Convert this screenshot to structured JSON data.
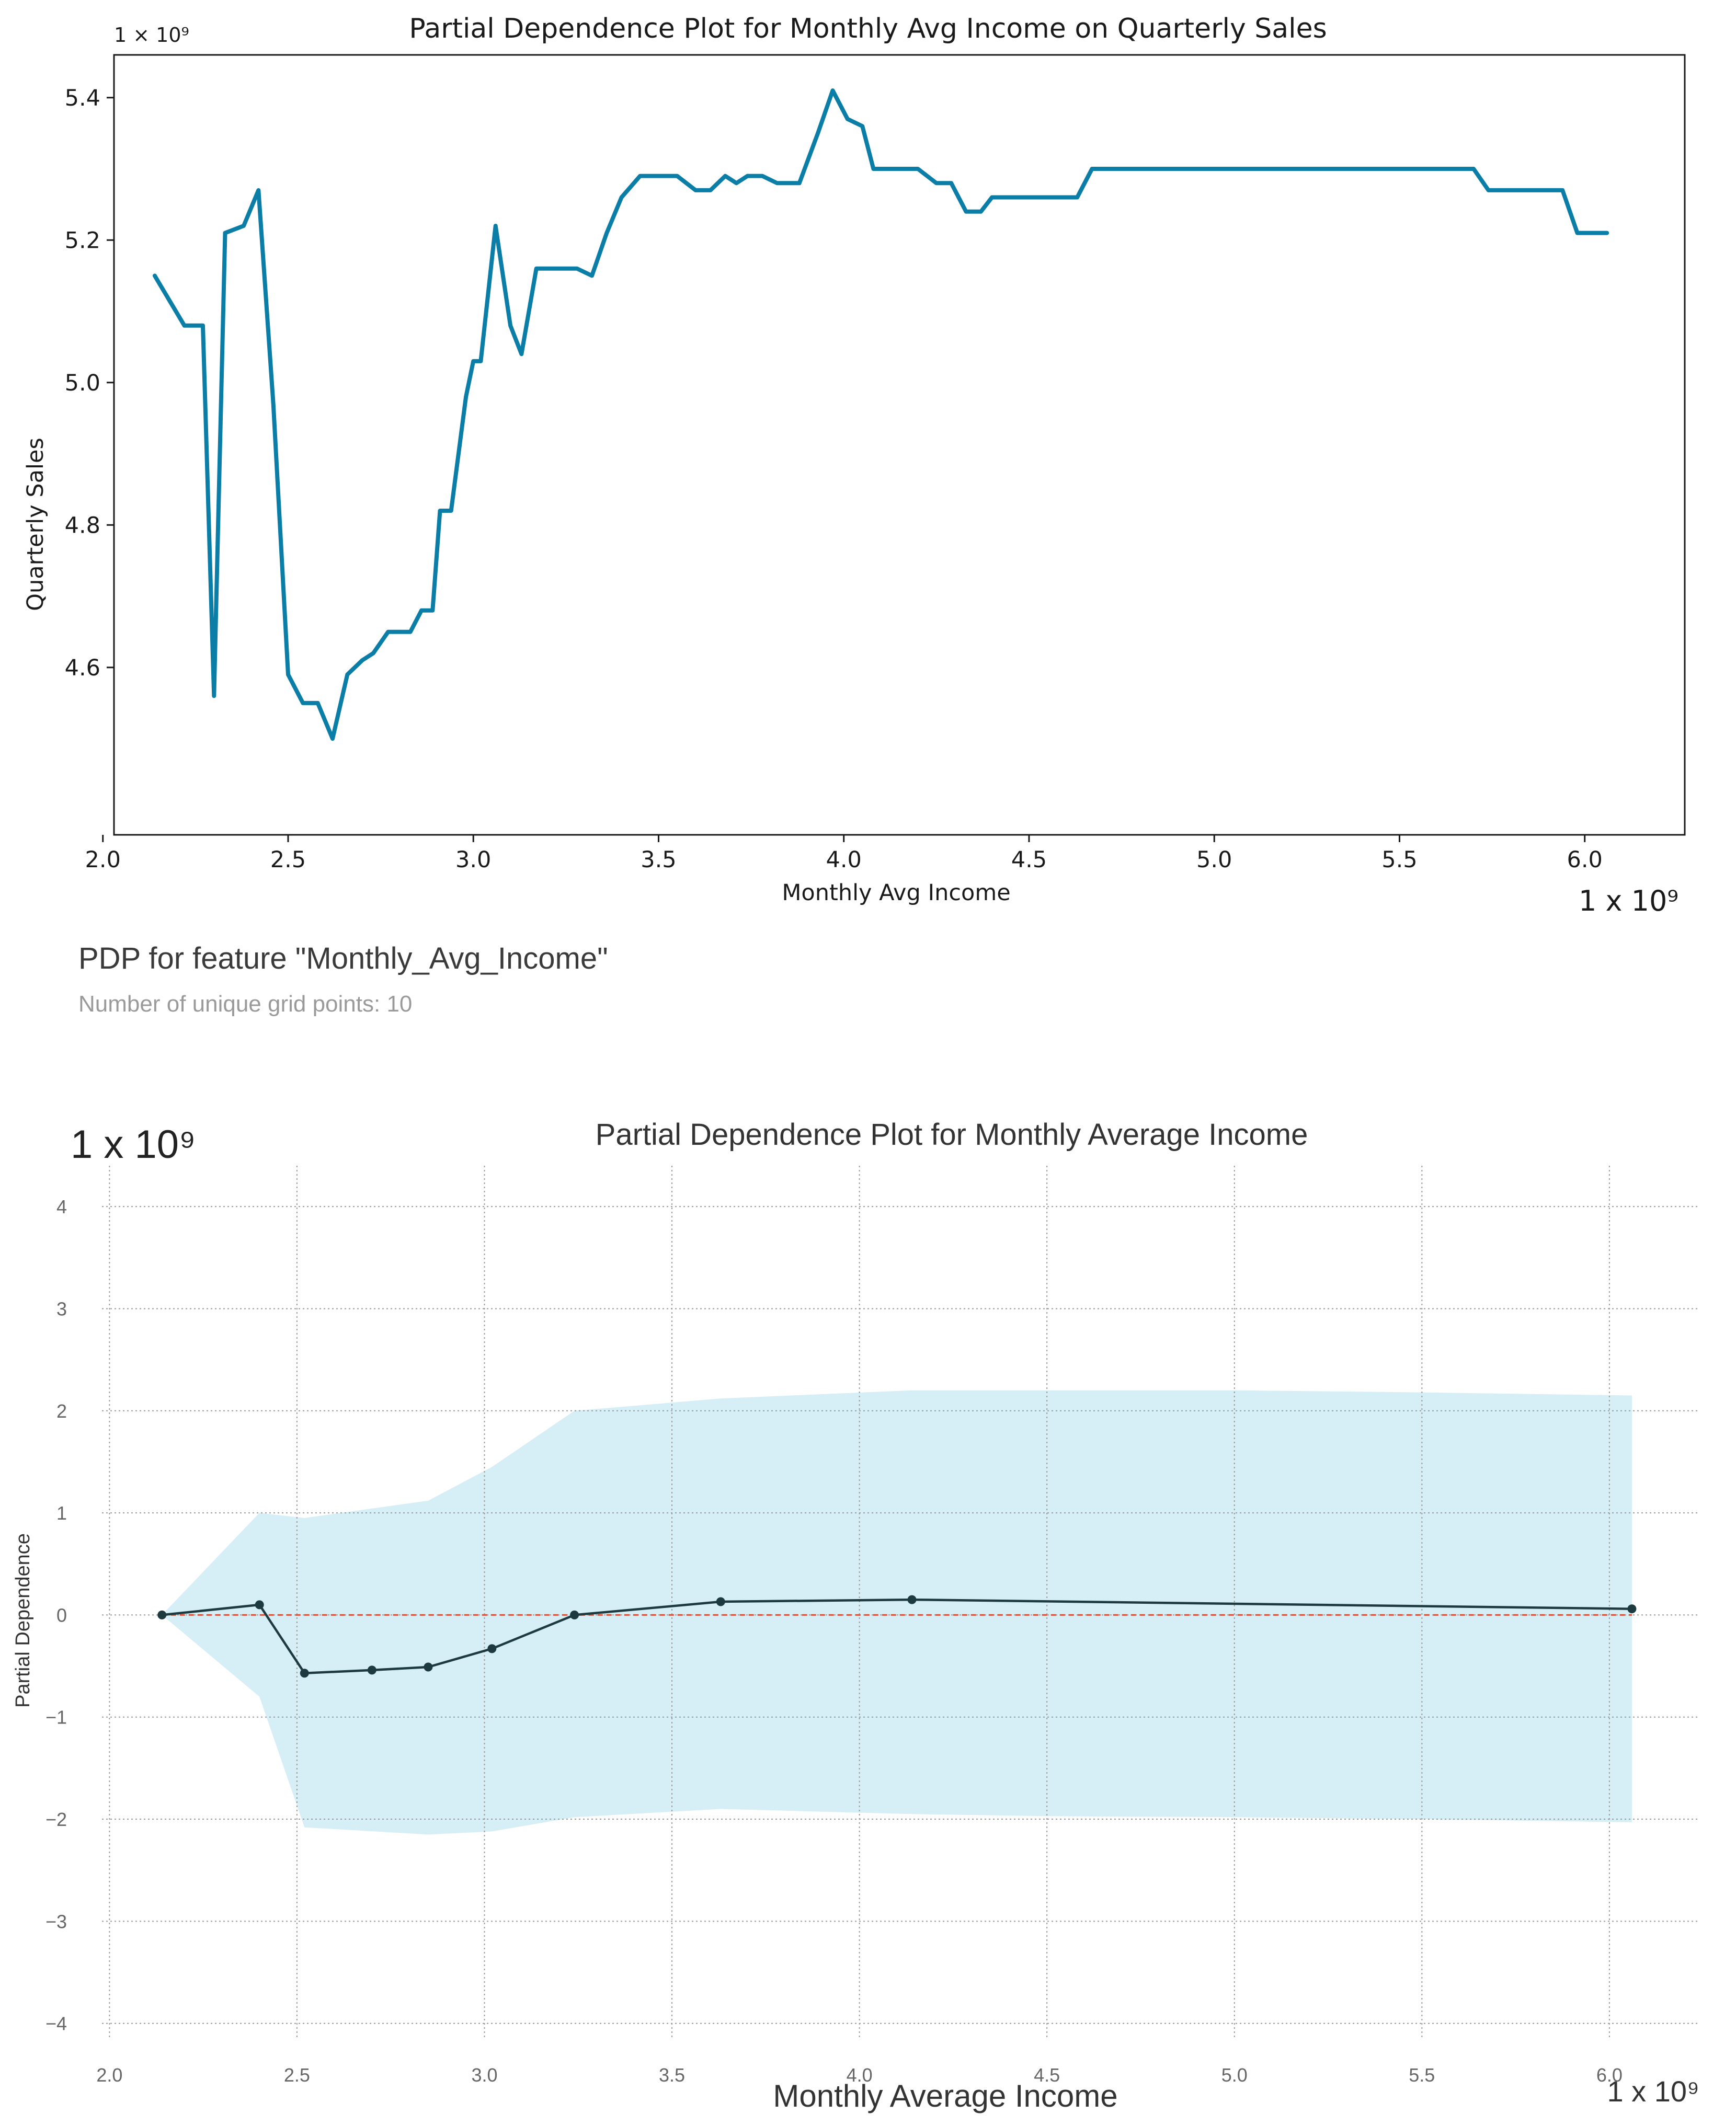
{
  "colors": {
    "line1": "#0a7ea6",
    "line2": "#1d3a40",
    "band": "#d6eef5",
    "zero_ref": "#d9533a",
    "grid": "#9a9a9a",
    "subtitle_gray": "#9a9a9a"
  },
  "pdp_header": {
    "title": "PDP for feature \"Monthly_Avg_Income\"",
    "subtitle": "Number of unique grid points: 10"
  },
  "chart_data": [
    {
      "type": "line",
      "title": "Partial Dependence Plot for Monthly Avg Income on Quarterly Sales",
      "xlabel": "Monthly Avg Income",
      "ylabel": "Quarterly Sales",
      "x_scale_label": "1 x 10⁹",
      "y_scale_label": "1 × 10⁹",
      "xlim": [
        2.03,
        6.27
      ],
      "ylim": [
        4.365,
        5.46
      ],
      "xticks": [
        "2.0",
        "2.5",
        "3.0",
        "3.5",
        "4.0",
        "4.5",
        "5.0",
        "5.5",
        "6.0"
      ],
      "yticks": [
        "4.6",
        "4.8",
        "5.0",
        "5.2",
        "5.4"
      ],
      "grid": false,
      "series": [
        {
          "name": "Quarterly Sales",
          "x": [
            2.14,
            2.22,
            2.27,
            2.3,
            2.33,
            2.38,
            2.42,
            2.46,
            2.5,
            2.54,
            2.58,
            2.62,
            2.66,
            2.7,
            2.73,
            2.77,
            2.8,
            2.83,
            2.86,
            2.89,
            2.91,
            2.94,
            2.98,
            3.0,
            3.02,
            3.06,
            3.1,
            3.13,
            3.17,
            3.21,
            3.24,
            3.28,
            3.32,
            3.36,
            3.4,
            3.45,
            3.5,
            3.55,
            3.6,
            3.64,
            3.68,
            3.71,
            3.74,
            3.78,
            3.82,
            3.84,
            3.88,
            3.93,
            3.97,
            4.01,
            4.05,
            4.08,
            4.11,
            4.15,
            4.2,
            4.25,
            4.29,
            4.33,
            4.37,
            4.4,
            4.44,
            4.48,
            4.53,
            4.58,
            4.63,
            4.67,
            4.72,
            4.8,
            4.95,
            5.05,
            5.15,
            5.2,
            5.3,
            5.45,
            5.6,
            5.7,
            5.74,
            5.8,
            5.88,
            5.94,
            5.98,
            6.02,
            6.06
          ],
          "values": [
            5.15,
            5.08,
            5.08,
            4.56,
            5.21,
            5.22,
            5.27,
            4.97,
            4.59,
            4.55,
            4.55,
            4.5,
            4.59,
            4.61,
            4.62,
            4.65,
            4.65,
            4.65,
            4.68,
            4.68,
            4.82,
            4.82,
            4.98,
            5.03,
            5.03,
            5.22,
            5.08,
            5.04,
            5.16,
            5.16,
            5.16,
            5.16,
            5.15,
            5.21,
            5.26,
            5.29,
            5.29,
            5.29,
            5.27,
            5.27,
            5.29,
            5.28,
            5.29,
            5.29,
            5.28,
            5.28,
            5.28,
            5.35,
            5.41,
            5.37,
            5.36,
            5.3,
            5.3,
            5.3,
            5.3,
            5.28,
            5.28,
            5.24,
            5.24,
            5.26,
            5.26,
            5.26,
            5.26,
            5.26,
            5.26,
            5.3,
            5.3,
            5.3,
            5.3,
            5.3,
            5.3,
            5.3,
            5.3,
            5.3,
            5.3,
            5.3,
            5.27,
            5.27,
            5.27,
            5.27,
            5.21,
            5.21,
            5.21
          ]
        }
      ]
    },
    {
      "type": "line",
      "title": "Partial Dependence Plot for Monthly Average Income",
      "xlabel": "Monthly Average Income",
      "ylabel": "Partial Dependence",
      "x_scale_label": "1 x 10⁹",
      "y_scale_label": "1 x 10⁹",
      "xlim": [
        1.98,
        6.24
      ],
      "ylim": [
        -4.15,
        4.4
      ],
      "xticks": [
        "2.0",
        "2.5",
        "3.0",
        "3.5",
        "4.0",
        "4.5",
        "5.0",
        "5.5",
        "6.0"
      ],
      "yticks": [
        "−4",
        "−3",
        "−2",
        "−1",
        "0",
        "1",
        "2",
        "3",
        "4"
      ],
      "grid": true,
      "series": [
        {
          "name": "Partial Dependence",
          "x": [
            2.14,
            2.4,
            2.52,
            2.7,
            2.85,
            3.02,
            3.24,
            3.63,
            4.14,
            6.06
          ],
          "values": [
            0.0,
            0.1,
            -0.57,
            -0.54,
            -0.51,
            -0.33,
            0.0,
            0.13,
            0.15,
            0.06
          ]
        }
      ],
      "band": {
        "x": [
          2.14,
          2.4,
          2.52,
          2.85,
          3.02,
          3.24,
          3.63,
          4.14,
          4.5,
          5.0,
          5.5,
          6.06
        ],
        "upper": [
          0.0,
          1.0,
          0.95,
          1.12,
          1.45,
          2.0,
          2.12,
          2.2,
          2.2,
          2.2,
          2.18,
          2.15
        ],
        "lower": [
          0.0,
          -0.8,
          -2.08,
          -2.15,
          -2.12,
          -1.98,
          -1.9,
          -1.95,
          -1.97,
          -1.98,
          -2.0,
          -2.03
        ]
      },
      "reference_line": 0
    }
  ]
}
